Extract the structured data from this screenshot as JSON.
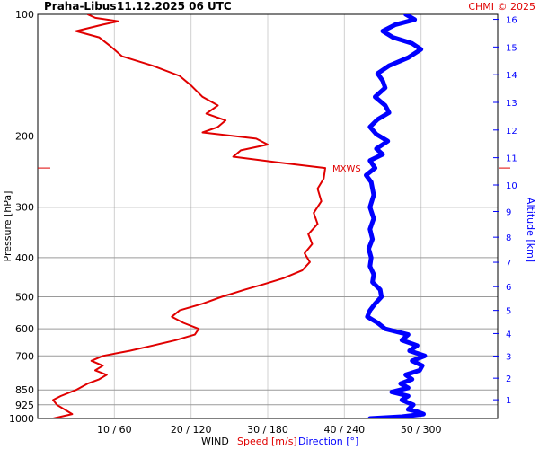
{
  "header": {
    "station": "Praha-Libus",
    "datetime": "11.12.2025 06 UTC",
    "copyright": "CHMI © 2025"
  },
  "chart_data": {
    "type": "line",
    "pressure_axis": {
      "label": "Pressure [hPa]",
      "scale": "log",
      "range": [
        1000,
        100
      ],
      "ticks": [
        {
          "value": 100,
          "label": "100"
        },
        {
          "value": 200,
          "label": "200"
        },
        {
          "value": 300,
          "label": "300"
        },
        {
          "value": 400,
          "label": "400"
        },
        {
          "value": 500,
          "label": "500"
        },
        {
          "value": 600,
          "label": "600"
        },
        {
          "value": 700,
          "label": "700"
        },
        {
          "value": 850,
          "label": "850"
        },
        {
          "value": 925,
          "label": "925"
        },
        {
          "value": 1000,
          "label": "1000"
        }
      ]
    },
    "altitude_axis": {
      "label": "Altitude [km]",
      "ticks": [
        "1",
        "2",
        "3",
        "4",
        "5",
        "6",
        "7",
        "8",
        "9",
        "10",
        "11",
        "12",
        "13",
        "14",
        "15",
        "16"
      ]
    },
    "x_axis": {
      "label": "WIND",
      "speed_label": "Speed [m/s]",
      "direction_label": "Direction [°]",
      "speed_range": [
        0,
        60
      ],
      "direction_range": [
        0,
        360
      ],
      "ticks": [
        {
          "speed": 10,
          "direction": 60,
          "label": "10 / 60"
        },
        {
          "speed": 20,
          "direction": 120,
          "label": "20 / 120"
        },
        {
          "speed": 30,
          "direction": 180,
          "label": "30 / 180"
        },
        {
          "speed": 40,
          "direction": 240,
          "label": "40 / 240"
        },
        {
          "speed": 50,
          "direction": 300,
          "label": "50 / 300"
        }
      ]
    },
    "grid": true,
    "max_wind": {
      "label": "MXWS",
      "pressure": 240,
      "speed": 37.5
    },
    "series": [
      {
        "name": "Speed [m/s]",
        "color": "#e00000",
        "points": [
          [
            1000,
            2.0
          ],
          [
            975,
            4.5
          ],
          [
            950,
            3.5
          ],
          [
            925,
            2.5
          ],
          [
            900,
            2.0
          ],
          [
            880,
            3.0
          ],
          [
            850,
            5.0
          ],
          [
            820,
            6.5
          ],
          [
            800,
            8.0
          ],
          [
            780,
            9.0
          ],
          [
            760,
            7.5
          ],
          [
            740,
            8.5
          ],
          [
            720,
            7.0
          ],
          [
            700,
            8.5
          ],
          [
            680,
            12.0
          ],
          [
            660,
            15.0
          ],
          [
            640,
            18.0
          ],
          [
            620,
            20.5
          ],
          [
            600,
            21.0
          ],
          [
            580,
            19.0
          ],
          [
            560,
            17.5
          ],
          [
            540,
            18.5
          ],
          [
            520,
            21.5
          ],
          [
            500,
            24.0
          ],
          [
            480,
            27.0
          ],
          [
            465,
            29.5
          ],
          [
            450,
            32.0
          ],
          [
            430,
            34.5
          ],
          [
            410,
            35.5
          ],
          [
            390,
            34.8
          ],
          [
            370,
            35.8
          ],
          [
            350,
            35.3
          ],
          [
            330,
            36.5
          ],
          [
            310,
            36.0
          ],
          [
            290,
            37.0
          ],
          [
            270,
            36.5
          ],
          [
            255,
            37.3
          ],
          [
            240,
            37.5
          ],
          [
            232,
            31.0
          ],
          [
            225,
            25.5
          ],
          [
            217,
            26.5
          ],
          [
            210,
            30.0
          ],
          [
            203,
            28.5
          ],
          [
            196,
            21.5
          ],
          [
            190,
            23.5
          ],
          [
            183,
            24.5
          ],
          [
            176,
            22.0
          ],
          [
            168,
            23.5
          ],
          [
            160,
            21.5
          ],
          [
            150,
            20.0
          ],
          [
            142,
            18.5
          ],
          [
            134,
            15.0
          ],
          [
            127,
            11.0
          ],
          [
            120,
            9.5
          ],
          [
            114,
            8.0
          ],
          [
            110,
            5.0
          ],
          [
            106,
            8.5
          ],
          [
            104,
            10.5
          ],
          [
            102,
            7.5
          ],
          [
            100,
            6.5
          ]
        ]
      },
      {
        "name": "Direction [°]",
        "color": "#0000ff",
        "points": [
          [
            1000,
            260
          ],
          [
            990,
            285
          ],
          [
            975,
            302
          ],
          [
            960,
            296
          ],
          [
            950,
            290
          ],
          [
            925,
            294
          ],
          [
            900,
            285
          ],
          [
            880,
            290
          ],
          [
            860,
            277
          ],
          [
            840,
            290
          ],
          [
            820,
            284
          ],
          [
            800,
            293
          ],
          [
            780,
            288
          ],
          [
            760,
            299
          ],
          [
            740,
            301
          ],
          [
            720,
            293
          ],
          [
            700,
            303
          ],
          [
            680,
            291
          ],
          [
            660,
            297
          ],
          [
            640,
            285
          ],
          [
            620,
            290
          ],
          [
            600,
            272
          ],
          [
            580,
            266
          ],
          [
            560,
            258
          ],
          [
            540,
            260
          ],
          [
            520,
            264
          ],
          [
            500,
            269
          ],
          [
            480,
            268
          ],
          [
            460,
            262
          ],
          [
            440,
            263
          ],
          [
            420,
            260
          ],
          [
            400,
            261
          ],
          [
            380,
            259
          ],
          [
            360,
            262
          ],
          [
            340,
            260
          ],
          [
            320,
            263
          ],
          [
            300,
            260
          ],
          [
            280,
            263
          ],
          [
            260,
            261
          ],
          [
            250,
            257
          ],
          [
            240,
            264
          ],
          [
            230,
            260
          ],
          [
            222,
            270
          ],
          [
            215,
            265
          ],
          [
            206,
            274
          ],
          [
            198,
            265
          ],
          [
            190,
            260
          ],
          [
            182,
            266
          ],
          [
            175,
            275
          ],
          [
            168,
            272
          ],
          [
            160,
            264
          ],
          [
            152,
            272
          ],
          [
            146,
            270
          ],
          [
            140,
            266
          ],
          [
            134,
            275
          ],
          [
            128,
            290
          ],
          [
            122,
            300
          ],
          [
            118,
            293
          ],
          [
            114,
            278
          ],
          [
            110,
            270
          ],
          [
            106,
            280
          ],
          [
            103,
            295
          ],
          [
            100,
            288
          ]
        ]
      }
    ]
  }
}
